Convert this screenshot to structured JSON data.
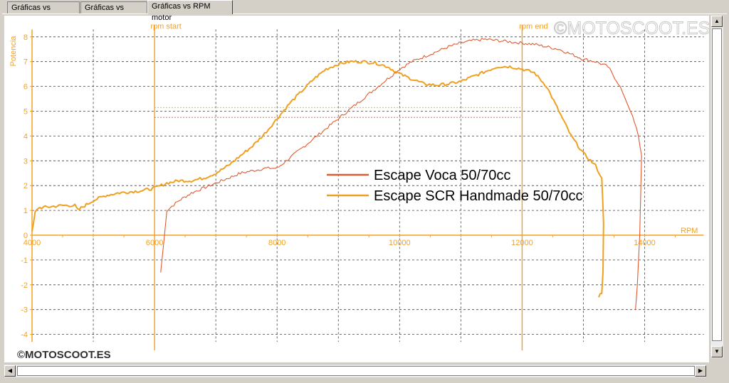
{
  "tabs": [
    {
      "label": "Gráficas vs Tiempo"
    },
    {
      "label": "Gráficas vs KMH"
    },
    {
      "label": "Gráficas vs RPM motor"
    }
  ],
  "watermark_top": "©MOTOSCOOT.ES",
  "watermark_bottom": "©MOTOSCOOT.ES",
  "chart_data": {
    "type": "line",
    "xlabel": "RPM",
    "ylabel": "Potencia",
    "xlim": [
      4000,
      15000
    ],
    "ylim": [
      -4.3,
      8.3
    ],
    "x_ticks": [
      4000,
      6000,
      8000,
      10000,
      12000,
      14000
    ],
    "y_ticks": [
      8,
      7,
      6,
      5,
      4,
      3,
      2,
      1,
      0,
      -1,
      -2,
      -3,
      -4
    ],
    "grid": true,
    "legend_position": "center-right",
    "markers": [
      {
        "label": "rpm start",
        "x": 6000
      },
      {
        "label": "rpm end",
        "x": 12000
      }
    ],
    "reference_lines": [
      {
        "y": 5.15,
        "series": 1
      },
      {
        "y": 4.75,
        "series": 0
      }
    ],
    "colors": {
      "axis": "#f5a020",
      "grid": "#404040",
      "series_voca": "#e05a30",
      "series_scr": "#f0a020"
    },
    "series": [
      {
        "name": "Escape Voca 50/70cc",
        "color": "#e05a30",
        "x": [
          6100,
          6150,
          6200,
          6400,
          6600,
          6800,
          7000,
          7200,
          7400,
          7600,
          7800,
          8000,
          8200,
          8400,
          8600,
          8800,
          9000,
          9200,
          9400,
          9600,
          9800,
          10000,
          10200,
          10400,
          10600,
          10800,
          11000,
          11200,
          11400,
          11600,
          11800,
          12000,
          12200,
          12400,
          12600,
          12800,
          13000,
          13200,
          13400,
          13600,
          13800,
          13900,
          13950,
          13920,
          13880,
          13850
        ],
        "y": [
          -1.5,
          -0.3,
          1.0,
          1.4,
          1.7,
          1.9,
          2.1,
          2.3,
          2.5,
          2.6,
          2.7,
          2.7,
          3.1,
          3.5,
          3.9,
          4.3,
          4.7,
          5.1,
          5.5,
          5.9,
          6.3,
          6.7,
          7.0,
          7.2,
          7.4,
          7.6,
          7.75,
          7.85,
          7.9,
          7.85,
          7.8,
          7.75,
          7.7,
          7.6,
          7.5,
          7.3,
          7.1,
          7.0,
          6.8,
          6.0,
          4.8,
          4.0,
          3.2,
          0.0,
          -2.0,
          -3.0
        ]
      },
      {
        "name": "Escape SCR Handmade 50/70cc",
        "color": "#f0a020",
        "x": [
          4000,
          4050,
          4100,
          4300,
          4500,
          4700,
          4750,
          4800,
          5000,
          5200,
          5400,
          5600,
          5800,
          6000,
          6200,
          6400,
          6600,
          6800,
          7000,
          7200,
          7400,
          7600,
          7800,
          8000,
          8200,
          8400,
          8600,
          8800,
          9000,
          9200,
          9400,
          9600,
          9800,
          10000,
          10200,
          10400,
          10600,
          10800,
          11000,
          11200,
          11400,
          11600,
          11800,
          12000,
          12200,
          12400,
          12600,
          12800,
          13000,
          13200,
          13300,
          13330,
          13320,
          13300,
          13250
        ],
        "y": [
          0.1,
          0.9,
          1.1,
          1.15,
          1.2,
          1.2,
          1.0,
          1.1,
          1.4,
          1.6,
          1.7,
          1.75,
          1.8,
          1.9,
          2.1,
          2.2,
          2.2,
          2.3,
          2.5,
          2.8,
          3.2,
          3.6,
          4.1,
          4.7,
          5.3,
          5.8,
          6.3,
          6.7,
          6.9,
          7.0,
          7.0,
          6.95,
          6.8,
          6.5,
          6.3,
          6.1,
          6.05,
          6.1,
          6.2,
          6.4,
          6.6,
          6.8,
          6.8,
          6.7,
          6.55,
          6.0,
          5.0,
          4.0,
          3.3,
          2.8,
          2.3,
          0.5,
          -1.5,
          -2.3,
          -2.5
        ]
      }
    ]
  }
}
